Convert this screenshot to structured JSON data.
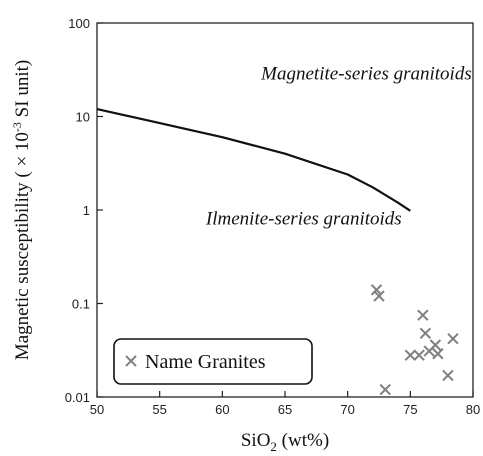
{
  "chart_data": {
    "type": "scatter",
    "xlabel_prefix": "SiO",
    "xlabel_sub": "2",
    "xlabel_suffix": " (wt%)",
    "ylabel_prefix": "Magnetic susceptibility ( × 10",
    "ylabel_sup": "-3",
    "ylabel_suffix": " SI unit)",
    "xlim": [
      50,
      80
    ],
    "ylim": [
      0.01,
      100
    ],
    "y_scale": "log",
    "x_ticks": [
      50,
      55,
      60,
      65,
      70,
      75,
      80
    ],
    "y_ticks": [
      {
        "value": 100,
        "label": "100"
      },
      {
        "value": 10,
        "label": "10"
      },
      {
        "value": 1,
        "label": "1"
      },
      {
        "value": 0.1,
        "label": "0.1"
      },
      {
        "value": 0.01,
        "label": "0.01"
      }
    ],
    "grid": false,
    "boundary_line": {
      "x": [
        50,
        55,
        60,
        65,
        70,
        72,
        74,
        75
      ],
      "y": [
        12,
        8.5,
        6.0,
        4.0,
        2.4,
        1.75,
        1.2,
        0.98
      ]
    },
    "annotations": [
      {
        "text": "Magnetite-series granitoids",
        "x": 71.5,
        "y": 25,
        "anchor": "middle"
      },
      {
        "text": "Ilmenite-series granitoids",
        "x": 66.5,
        "y": 0.7,
        "anchor": "middle"
      }
    ],
    "series": [
      {
        "name": "Name Granites",
        "marker": "x",
        "color": "#7f7f7f",
        "points": [
          {
            "x": 72.3,
            "y": 0.14
          },
          {
            "x": 72.5,
            "y": 0.12
          },
          {
            "x": 73.0,
            "y": 0.012
          },
          {
            "x": 75.0,
            "y": 0.028
          },
          {
            "x": 75.7,
            "y": 0.028
          },
          {
            "x": 76.0,
            "y": 0.075
          },
          {
            "x": 76.2,
            "y": 0.048
          },
          {
            "x": 76.5,
            "y": 0.031
          },
          {
            "x": 77.0,
            "y": 0.036
          },
          {
            "x": 77.2,
            "y": 0.029
          },
          {
            "x": 78.0,
            "y": 0.017
          },
          {
            "x": 78.4,
            "y": 0.042
          }
        ]
      }
    ],
    "legend_position": "bottom-left"
  }
}
